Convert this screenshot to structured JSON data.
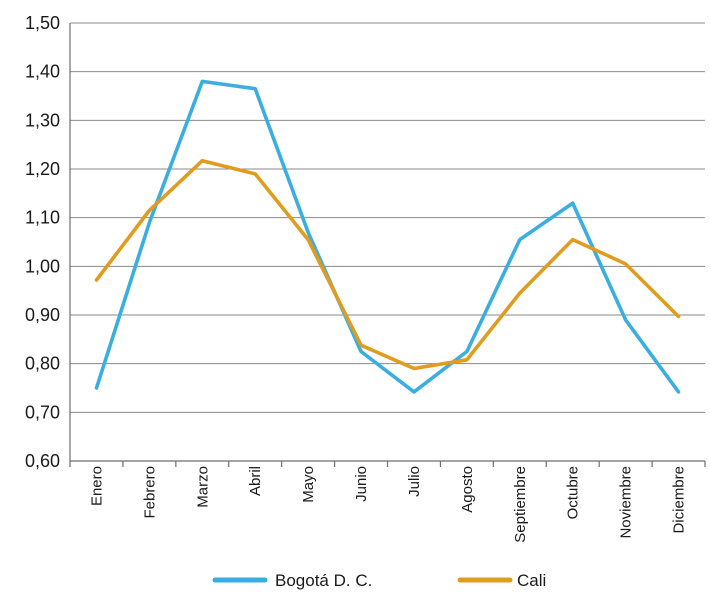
{
  "chart_data": {
    "type": "line",
    "categories": [
      "Enero",
      "Febrero",
      "Marzo",
      "Abril",
      "Mayo",
      "Junio",
      "Julio",
      "Agosto",
      "Septiembre",
      "Octubre",
      "Noviembre",
      "Diciembre"
    ],
    "series": [
      {
        "name": "Bogotá D. C.",
        "color": "#3aaee0",
        "values": [
          0.75,
          1.09,
          1.38,
          1.365,
          1.07,
          0.825,
          0.742,
          0.825,
          1.055,
          1.13,
          0.89,
          0.742
        ]
      },
      {
        "name": "Cali",
        "color": "#e09c1f",
        "values": [
          0.972,
          1.115,
          1.217,
          1.19,
          1.055,
          0.838,
          0.79,
          0.808,
          0.945,
          1.055,
          1.005,
          0.897
        ]
      }
    ],
    "yticks": [
      "0,60",
      "0,70",
      "0,80",
      "0,90",
      "1,00",
      "1,10",
      "1,20",
      "1,30",
      "1,40",
      "1,50"
    ],
    "ylim": [
      0.6,
      1.5
    ],
    "grid": true,
    "legend_position": "bottom",
    "xlabel": "",
    "ylabel": "",
    "title": ""
  }
}
